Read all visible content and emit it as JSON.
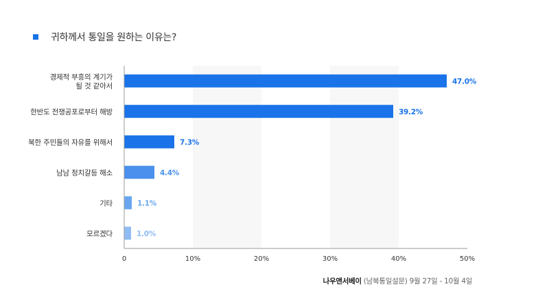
{
  "title": "귀하께서 통일을 원하는 이유는?",
  "source": {
    "name": "나우앤서베이",
    "detail": "(남북통일설문) 9월 27일 - 10월 4일"
  },
  "colors": {
    "marker": "#1a73e8",
    "band": "#f7f7f7",
    "axis": "#999999"
  },
  "chart_data": {
    "type": "bar",
    "orientation": "horizontal",
    "title": "귀하께서 통일을 원하는 이유는?",
    "categories": [
      "경제적 부흥의 계기가\n될 것 같아서",
      "한반도 전쟁공포로부터 해방",
      "북한 주민들의 자유를 위해서",
      "남남 정치갈등 해소",
      "기타",
      "모르겠다"
    ],
    "values": [
      47.0,
      39.2,
      7.3,
      4.4,
      1.1,
      1.0
    ],
    "value_labels": [
      "47.0%",
      "39.2%",
      "7.3%",
      "4.4%",
      "1.1%",
      "1.0%"
    ],
    "bar_colors": [
      "#1a73e8",
      "#1a73e8",
      "#1a73e8",
      "#4a90ec",
      "#6aa6f0",
      "#8fbcf3"
    ],
    "xlim": [
      0,
      50
    ],
    "xticks": [
      0,
      10,
      20,
      30,
      40,
      50
    ],
    "xtick_labels": [
      "0",
      "10%",
      "20%",
      "30%",
      "40%",
      "50%"
    ],
    "xlabel": "",
    "ylabel": "",
    "grid": "alternating vertical bands",
    "legend": "none"
  }
}
